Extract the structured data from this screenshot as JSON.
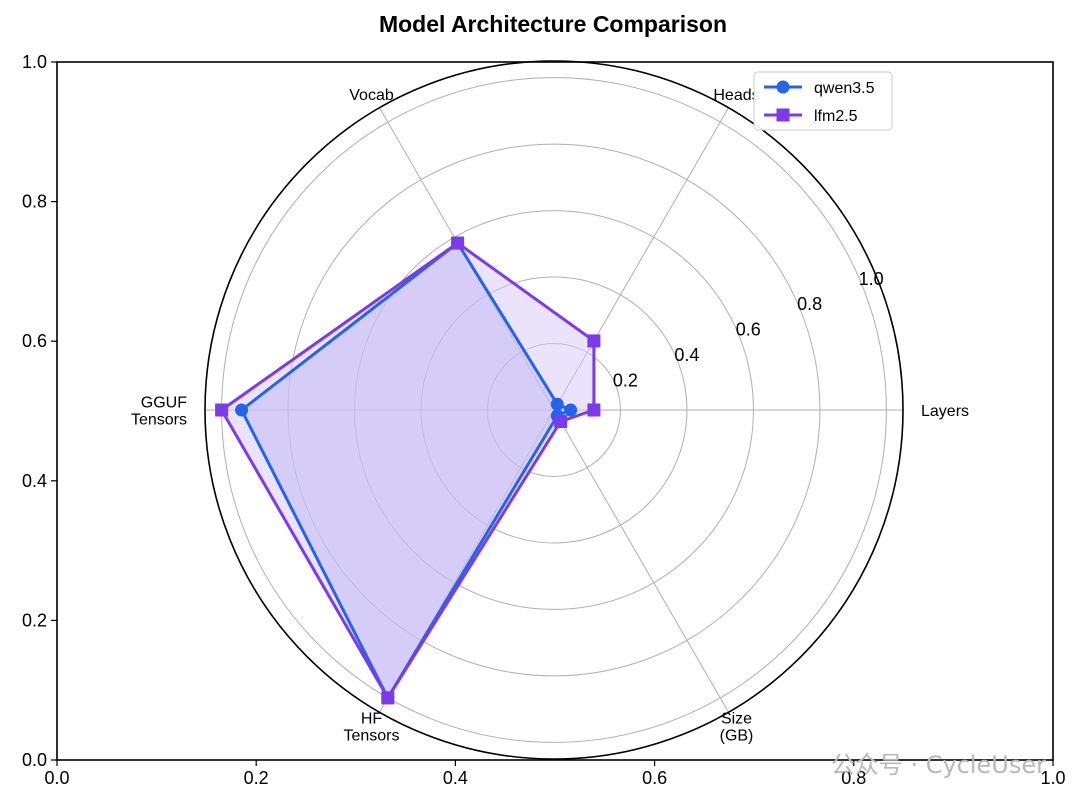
{
  "chart_data": {
    "type": "radar",
    "title": "Model Architecture Comparison",
    "categories": [
      "Layers",
      "Heads",
      "Vocab",
      "GGUF\nTensors",
      "HF\nTensors",
      "Size\n(GB)"
    ],
    "radial_ticks": [
      "0.2",
      "0.4",
      "0.6",
      "0.8",
      "1.0"
    ],
    "rlim": [
      0,
      1.05
    ],
    "outer_x_ticks": [
      "0.0",
      "0.2",
      "0.4",
      "0.6",
      "0.8",
      "1.0"
    ],
    "outer_y_ticks": [
      "0.0",
      "0.2",
      "0.4",
      "0.6",
      "0.8",
      "1.0"
    ],
    "grid": true,
    "legend_position": "top-right",
    "series": [
      {
        "name": "qwen3.5",
        "marker": "circle",
        "color": "#2563eb",
        "fill": "#a8a8f0",
        "values": [
          0.05,
          0.02,
          0.58,
          0.94,
          1.0,
          0.02
        ]
      },
      {
        "name": "lfm2.5",
        "marker": "square",
        "color": "#7c3aed",
        "fill": "#d8c8f8",
        "values": [
          0.12,
          0.24,
          0.58,
          1.0,
          1.0,
          0.04
        ]
      }
    ]
  },
  "watermark": "公众号 · CycleUser"
}
